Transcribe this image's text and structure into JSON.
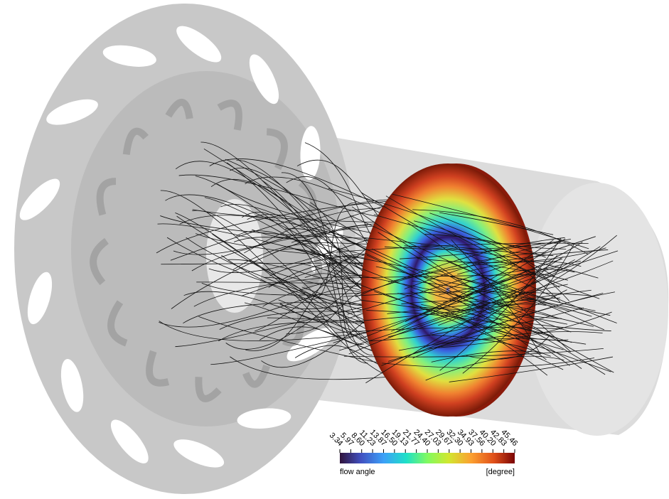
{
  "colorbar": {
    "title": "flow angle",
    "unit": "[degree]",
    "ticks": [
      3.34,
      5.97,
      {
        "value": 8.6,
        "label": "8.60"
      },
      11.23,
      13.87,
      {
        "value": 16.5,
        "label": "16.50"
      },
      19.13,
      21.77,
      {
        "value": 24.4,
        "label": "24.40"
      },
      27.03,
      29.67,
      {
        "value": 32.3,
        "label": "32.30"
      },
      34.93,
      37.56,
      {
        "value": 40.2,
        "label": "40.20"
      },
      42.83,
      45.46
    ]
  }
}
